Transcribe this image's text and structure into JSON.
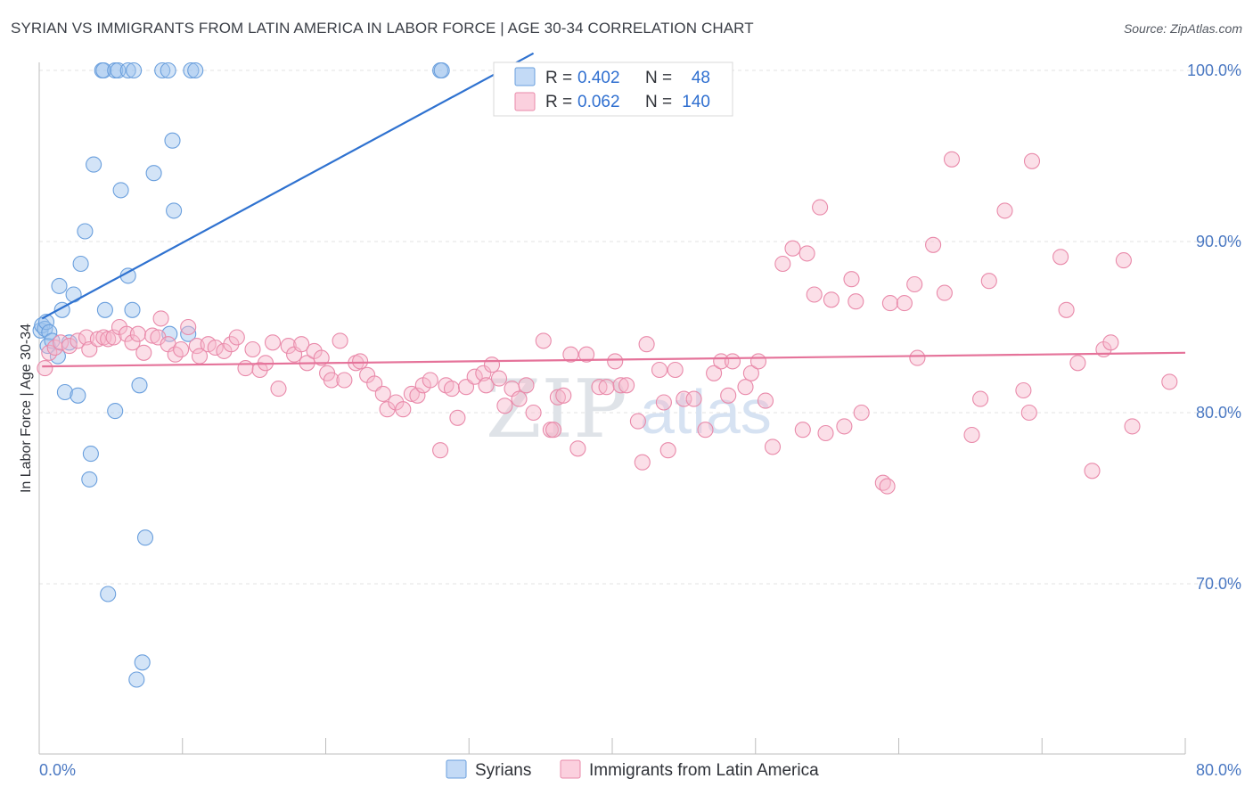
{
  "header": {
    "title": "SYRIAN VS IMMIGRANTS FROM LATIN AMERICA IN LABOR FORCE | AGE 30-34 CORRELATION CHART",
    "source": "Source: ZipAtlas.com"
  },
  "watermark": {
    "part1": "ZIP",
    "part2": "atlas"
  },
  "colors": {
    "blue": "#9ec3ee",
    "blue_stroke": "#6a9fdd",
    "blue_line": "#2f72d0",
    "pink": "#f6b9cd",
    "pink_stroke": "#e98aaa",
    "pink_line": "#e5739a",
    "tick": "#4a78c2"
  },
  "legend": {
    "r_label": "R =",
    "n_label": "N =",
    "rows": [
      {
        "r": "0.402",
        "n": "48"
      },
      {
        "r": "0.062",
        "n": "140"
      }
    ]
  },
  "chart_data": {
    "type": "scatter",
    "title": "SYRIAN VS IMMIGRANTS FROM LATIN AMERICA IN LABOR FORCE | AGE 30-34 CORRELATION CHART",
    "xlabel": "",
    "ylabel": "In Labor Force | Age 30-34",
    "xlim": [
      0,
      80
    ],
    "ylim": [
      60,
      101
    ],
    "x_tick_labels": [
      "0.0%",
      "80.0%"
    ],
    "y_ticks": [
      70,
      80,
      90,
      100
    ],
    "y_tick_labels": [
      "70.0%",
      "80.0%",
      "90.0%",
      "100.0%"
    ],
    "grid": true,
    "legend_position": "top-center",
    "series": [
      {
        "name": "Syrians",
        "trend": {
          "x": [
            0.2,
            34.5
          ],
          "y": [
            85.5,
            101
          ]
        },
        "points": [
          [
            0.1,
            84.8
          ],
          [
            0.2,
            85.1
          ],
          [
            0.4,
            84.9
          ],
          [
            0.5,
            85.3
          ],
          [
            0.6,
            83.9
          ],
          [
            0.7,
            84.7
          ],
          [
            0.9,
            84.2
          ],
          [
            1.3,
            83.3
          ],
          [
            1.4,
            87.4
          ],
          [
            1.6,
            86.0
          ],
          [
            1.8,
            81.2
          ],
          [
            2.1,
            84.1
          ],
          [
            2.4,
            86.9
          ],
          [
            2.7,
            81.0
          ],
          [
            2.9,
            88.7
          ],
          [
            3.2,
            90.6
          ],
          [
            3.5,
            76.1
          ],
          [
            3.6,
            77.6
          ],
          [
            3.8,
            94.5
          ],
          [
            4.4,
            100
          ],
          [
            4.5,
            100
          ],
          [
            4.6,
            86.0
          ],
          [
            4.8,
            69.4
          ],
          [
            5.3,
            100
          ],
          [
            5.3,
            80.1
          ],
          [
            5.5,
            100
          ],
          [
            5.7,
            93.0
          ],
          [
            6.2,
            100
          ],
          [
            6.2,
            88.0
          ],
          [
            6.5,
            86.0
          ],
          [
            6.6,
            100
          ],
          [
            6.8,
            64.4
          ],
          [
            7.0,
            81.6
          ],
          [
            7.2,
            65.4
          ],
          [
            7.4,
            72.7
          ],
          [
            8.0,
            94.0
          ],
          [
            8.6,
            100
          ],
          [
            9.0,
            100
          ],
          [
            9.1,
            84.6
          ],
          [
            9.3,
            95.9
          ],
          [
            9.4,
            91.8
          ],
          [
            10.4,
            84.6
          ],
          [
            10.6,
            100
          ],
          [
            10.9,
            100
          ],
          [
            28.0,
            100
          ],
          [
            28.1,
            100
          ],
          [
            34.4,
            100
          ],
          [
            47.6,
            100
          ]
        ]
      },
      {
        "name": "Immigrants from Latin America",
        "trend": {
          "x": [
            0.2,
            80
          ],
          "y": [
            82.7,
            83.5
          ]
        },
        "points": [
          [
            0.4,
            82.6
          ],
          [
            0.7,
            83.5
          ],
          [
            1.1,
            83.8
          ],
          [
            1.5,
            84.1
          ],
          [
            2.1,
            83.9
          ],
          [
            2.7,
            84.2
          ],
          [
            3.3,
            84.4
          ],
          [
            3.5,
            83.7
          ],
          [
            4.1,
            84.3
          ],
          [
            4.5,
            84.4
          ],
          [
            4.8,
            84.3
          ],
          [
            5.2,
            84.4
          ],
          [
            5.6,
            85.0
          ],
          [
            6.1,
            84.6
          ],
          [
            6.5,
            84.1
          ],
          [
            6.9,
            84.6
          ],
          [
            7.3,
            83.5
          ],
          [
            7.9,
            84.5
          ],
          [
            8.3,
            84.4
          ],
          [
            8.5,
            85.5
          ],
          [
            9.0,
            84.0
          ],
          [
            9.5,
            83.4
          ],
          [
            9.9,
            83.7
          ],
          [
            10.4,
            85.0
          ],
          [
            11.0,
            83.9
          ],
          [
            11.2,
            83.3
          ],
          [
            11.8,
            84.0
          ],
          [
            12.3,
            83.8
          ],
          [
            12.9,
            83.6
          ],
          [
            13.4,
            84.0
          ],
          [
            13.8,
            84.4
          ],
          [
            14.4,
            82.6
          ],
          [
            14.9,
            83.7
          ],
          [
            15.4,
            82.5
          ],
          [
            15.8,
            82.9
          ],
          [
            16.3,
            84.1
          ],
          [
            16.7,
            81.4
          ],
          [
            17.4,
            83.9
          ],
          [
            17.8,
            83.4
          ],
          [
            18.3,
            84.0
          ],
          [
            18.7,
            82.9
          ],
          [
            19.2,
            83.6
          ],
          [
            19.7,
            83.2
          ],
          [
            20.1,
            82.3
          ],
          [
            20.4,
            81.9
          ],
          [
            21.0,
            84.2
          ],
          [
            21.3,
            81.9
          ],
          [
            22.1,
            82.9
          ],
          [
            22.4,
            83.0
          ],
          [
            22.9,
            82.2
          ],
          [
            23.4,
            81.7
          ],
          [
            24.0,
            81.1
          ],
          [
            24.3,
            80.2
          ],
          [
            24.9,
            80.6
          ],
          [
            25.4,
            80.2
          ],
          [
            26.0,
            81.1
          ],
          [
            26.4,
            81.0
          ],
          [
            26.8,
            81.6
          ],
          [
            27.3,
            81.9
          ],
          [
            28.0,
            77.8
          ],
          [
            28.4,
            81.6
          ],
          [
            28.8,
            81.4
          ],
          [
            29.2,
            79.7
          ],
          [
            29.8,
            81.5
          ],
          [
            30.4,
            82.1
          ],
          [
            31.0,
            82.3
          ],
          [
            31.2,
            81.6
          ],
          [
            31.6,
            82.8
          ],
          [
            32.1,
            82.0
          ],
          [
            32.5,
            80.4
          ],
          [
            33.0,
            81.4
          ],
          [
            33.5,
            80.8
          ],
          [
            34.0,
            81.6
          ],
          [
            34.5,
            80.0
          ],
          [
            35.2,
            84.2
          ],
          [
            35.7,
            79.0
          ],
          [
            35.9,
            79.0
          ],
          [
            36.2,
            80.9
          ],
          [
            36.6,
            81.0
          ],
          [
            37.1,
            83.4
          ],
          [
            37.6,
            77.9
          ],
          [
            38.2,
            83.4
          ],
          [
            39.1,
            81.5
          ],
          [
            39.6,
            81.5
          ],
          [
            40.2,
            83.0
          ],
          [
            40.6,
            81.6
          ],
          [
            41.0,
            81.6
          ],
          [
            41.8,
            79.5
          ],
          [
            42.1,
            77.1
          ],
          [
            42.4,
            84.0
          ],
          [
            43.3,
            82.5
          ],
          [
            43.6,
            80.6
          ],
          [
            43.9,
            77.8
          ],
          [
            44.4,
            82.5
          ],
          [
            45.0,
            80.8
          ],
          [
            45.7,
            80.8
          ],
          [
            46.5,
            79.0
          ],
          [
            47.1,
            82.3
          ],
          [
            47.6,
            83.0
          ],
          [
            48.1,
            81.0
          ],
          [
            48.4,
            83.0
          ],
          [
            49.3,
            81.5
          ],
          [
            49.7,
            82.3
          ],
          [
            50.2,
            83.0
          ],
          [
            50.7,
            80.7
          ],
          [
            51.2,
            78.0
          ],
          [
            51.9,
            88.7
          ],
          [
            52.6,
            89.6
          ],
          [
            53.3,
            79.0
          ],
          [
            53.6,
            89.3
          ],
          [
            54.1,
            86.9
          ],
          [
            54.5,
            92.0
          ],
          [
            54.9,
            78.8
          ],
          [
            55.3,
            86.6
          ],
          [
            56.2,
            79.2
          ],
          [
            56.7,
            87.8
          ],
          [
            57.0,
            86.5
          ],
          [
            57.4,
            80.0
          ],
          [
            58.9,
            75.9
          ],
          [
            59.2,
            75.7
          ],
          [
            59.4,
            86.4
          ],
          [
            60.4,
            86.4
          ],
          [
            61.1,
            87.5
          ],
          [
            61.3,
            83.2
          ],
          [
            62.4,
            89.8
          ],
          [
            63.2,
            87.0
          ],
          [
            63.7,
            94.8
          ],
          [
            65.1,
            78.7
          ],
          [
            65.7,
            80.8
          ],
          [
            66.3,
            87.7
          ],
          [
            67.4,
            91.8
          ],
          [
            68.7,
            81.3
          ],
          [
            69.1,
            80.0
          ],
          [
            69.3,
            94.7
          ],
          [
            71.3,
            89.1
          ],
          [
            71.7,
            86.0
          ],
          [
            72.5,
            82.9
          ],
          [
            73.5,
            76.6
          ],
          [
            74.3,
            83.7
          ],
          [
            74.8,
            84.1
          ],
          [
            75.7,
            88.9
          ],
          [
            76.3,
            79.2
          ],
          [
            78.9,
            81.8
          ]
        ]
      }
    ]
  }
}
